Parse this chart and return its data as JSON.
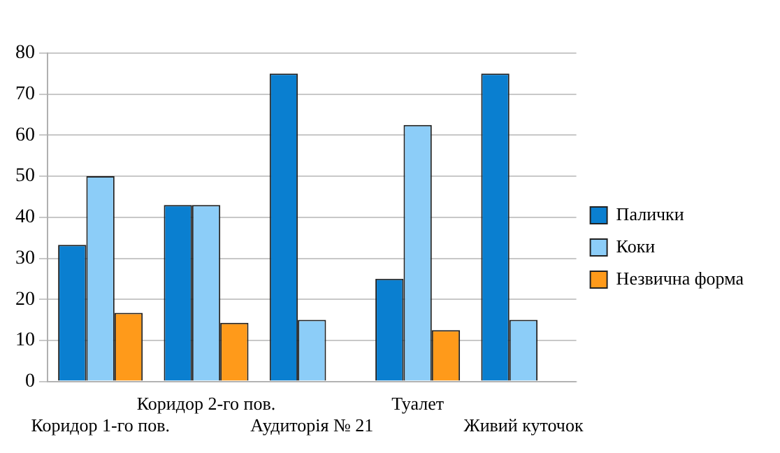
{
  "chart_data": {
    "type": "bar",
    "categories": [
      "Коридор 1-го пов.",
      "Коридор 2-го пов.",
      "Аудиторія № 21",
      "Туалет",
      "Живий куточок"
    ],
    "series": [
      {
        "name": "Палички",
        "color": "#0a7fd0",
        "values": [
          33.3,
          43,
          75,
          25,
          75
        ]
      },
      {
        "name": "Коки",
        "color": "#8ccdf8",
        "values": [
          50,
          43,
          15,
          62.5,
          15
        ]
      },
      {
        "name": "Незвична форма",
        "color": "#ff9a1a",
        "values": [
          16.7,
          14.3,
          0,
          12.5,
          0
        ]
      }
    ],
    "ylim": [
      0,
      80
    ],
    "yticks": [
      0,
      10,
      20,
      30,
      40,
      50,
      60,
      70,
      80
    ],
    "grid": "y",
    "legend": "right"
  }
}
